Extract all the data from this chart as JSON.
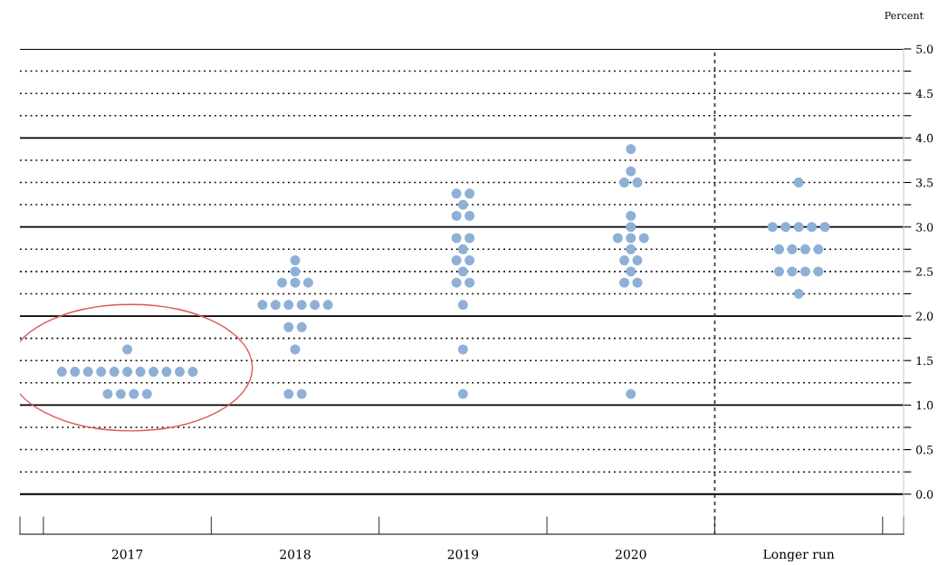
{
  "chart_data": {
    "type": "scatter",
    "ylabel": "Percent",
    "categories": [
      "2017",
      "2018",
      "2019",
      "2020",
      "Longer run"
    ],
    "series": [
      {
        "color": "#8fb0d6",
        "values": [
          1.625,
          2.625,
          3.375,
          3.875,
          3.5
        ]
      },
      {
        "color": "#8fb0d6",
        "values": [
          1.375,
          2.5,
          3.375,
          3.625,
          3.0
        ]
      },
      {
        "color": "#8fb0d6",
        "values": [
          1.375,
          2.375,
          3.25,
          3.5,
          3.0
        ]
      },
      {
        "color": "#8fb0d6",
        "values": [
          1.375,
          2.375,
          3.125,
          3.5,
          3.0
        ]
      },
      {
        "color": "#8fb0d6",
        "values": [
          1.375,
          2.375,
          3.125,
          3.125,
          3.0
        ]
      },
      {
        "color": "#8fb0d6",
        "values": [
          1.375,
          2.125,
          2.875,
          3.0,
          3.0
        ]
      },
      {
        "color": "#8fb0d6",
        "values": [
          1.375,
          2.125,
          2.875,
          2.875,
          2.75
        ]
      },
      {
        "color": "#8fb0d6",
        "values": [
          1.375,
          2.125,
          2.75,
          2.875,
          2.75
        ]
      },
      {
        "color": "#8fb0d6",
        "values": [
          1.375,
          2.125,
          2.625,
          2.875,
          2.75
        ]
      },
      {
        "color": "#8fb0d6",
        "values": [
          1.375,
          2.125,
          2.625,
          2.75,
          2.75
        ]
      },
      {
        "color": "#8fb0d6",
        "values": [
          1.375,
          2.125,
          2.5,
          2.625,
          2.5
        ]
      },
      {
        "color": "#8fb0d6",
        "values": [
          1.375,
          1.875,
          2.375,
          2.625,
          2.5
        ]
      },
      {
        "color": "#8fb0d6",
        "values": [
          1.125,
          1.875,
          2.375,
          2.5,
          2.5
        ]
      },
      {
        "color": "#8fb0d6",
        "values": [
          1.125,
          1.625,
          2.125,
          2.375,
          2.5
        ]
      },
      {
        "color": "#8fb0d6",
        "values": [
          1.125,
          1.125,
          1.625,
          2.375,
          2.25
        ]
      },
      {
        "color": "#8fb0d6",
        "values": [
          1.125,
          1.125,
          1.125,
          1.125,
          null
        ]
      }
    ],
    "ylim": [
      -0.45,
      5.0
    ],
    "yticks": [
      {
        "value": 0,
        "label": "0.0"
      },
      {
        "value": 0.25,
        "label": null
      },
      {
        "value": 0.5,
        "label": "0.5"
      },
      {
        "value": 0.75,
        "label": null
      },
      {
        "value": 1,
        "label": "1.0"
      },
      {
        "value": 1.25,
        "label": null
      },
      {
        "value": 1.5,
        "label": "1.5"
      },
      {
        "value": 1.75,
        "label": null
      },
      {
        "value": 2,
        "label": "2.0"
      },
      {
        "value": 2.25,
        "label": null
      },
      {
        "value": 2.5,
        "label": "2.5"
      },
      {
        "value": 2.75,
        "label": null
      },
      {
        "value": 3,
        "label": "3.0"
      },
      {
        "value": 3.25,
        "label": null
      },
      {
        "value": 3.5,
        "label": "3.5"
      },
      {
        "value": 3.75,
        "label": null
      },
      {
        "value": 4,
        "label": "4.0"
      },
      {
        "value": 4.25,
        "label": null
      },
      {
        "value": 4.5,
        "label": "4.5"
      },
      {
        "value": 4.75,
        "label": null
      },
      {
        "value": 5,
        "label": "5.0"
      }
    ],
    "grid": "y",
    "marker": "circle"
  }
}
